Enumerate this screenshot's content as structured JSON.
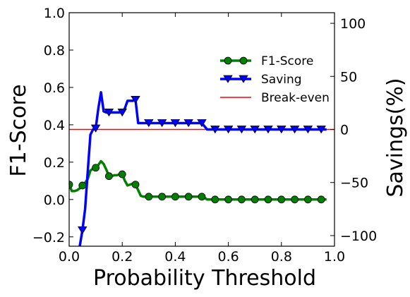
{
  "chart_data": {
    "type": "line",
    "title": "",
    "xlabel": "Probability Threshold",
    "ylabel": "F1-Score",
    "y2label": "Savings(%)",
    "xlim": [
      0.0,
      1.0
    ],
    "ylim": [
      -0.25,
      1.0
    ],
    "y2lim": [
      -110,
      110
    ],
    "xticks": [
      "0.0",
      "0.2",
      "0.4",
      "0.6",
      "0.8",
      "1.0"
    ],
    "yticks": [
      "1.0",
      "0.8",
      "0.6",
      "0.4",
      "0.2",
      "0.0",
      "−0.2"
    ],
    "y2ticks": [
      "100",
      "50",
      "0",
      "−50",
      "−100"
    ],
    "grid": false,
    "legend_position": "upper-right",
    "series": [
      {
        "name": "F1-Score",
        "axis": "left",
        "color": "#007f00",
        "marker": "circle",
        "marker_x": [
          0.0,
          0.05,
          0.1,
          0.15,
          0.2,
          0.25,
          0.3,
          0.35,
          0.4,
          0.45,
          0.5,
          0.55,
          0.6,
          0.65,
          0.7,
          0.75,
          0.8,
          0.85,
          0.9,
          0.95
        ],
        "x": [
          0.0,
          0.01,
          0.02,
          0.03,
          0.04,
          0.05,
          0.06,
          0.07,
          0.08,
          0.09,
          0.1,
          0.11,
          0.12,
          0.13,
          0.14,
          0.15,
          0.16,
          0.17,
          0.18,
          0.19,
          0.2,
          0.21,
          0.22,
          0.23,
          0.24,
          0.25,
          0.26,
          0.27,
          0.28,
          0.29,
          0.3,
          0.35,
          0.4,
          0.45,
          0.5,
          0.51,
          0.52,
          0.55,
          0.6,
          0.65,
          0.7,
          0.75,
          0.8,
          0.85,
          0.9,
          0.95,
          0.97
        ],
        "values": [
          0.08,
          0.045,
          0.045,
          0.05,
          0.06,
          0.075,
          0.09,
          0.11,
          0.155,
          0.165,
          0.17,
          0.185,
          0.205,
          0.19,
          0.16,
          0.125,
          0.125,
          0.13,
          0.13,
          0.135,
          0.135,
          0.1,
          0.075,
          0.08,
          0.085,
          0.08,
          0.05,
          0.02,
          0.015,
          0.015,
          0.015,
          0.015,
          0.015,
          0.015,
          0.015,
          0.01,
          0.0,
          0.0,
          0.0,
          0.0,
          0.0,
          0.0,
          0.0,
          0.0,
          0.0,
          0.0,
          0.0
        ]
      },
      {
        "name": "Saving",
        "axis": "right",
        "color": "#0000ff",
        "marker": "triangle-down",
        "marker_x": [
          0.05,
          0.1,
          0.15,
          0.2,
          0.25,
          0.3,
          0.35,
          0.4,
          0.45,
          0.5,
          0.55,
          0.6,
          0.65,
          0.7,
          0.75,
          0.8,
          0.85,
          0.9,
          0.95
        ],
        "x": [
          0.04,
          0.05,
          0.06,
          0.07,
          0.08,
          0.09,
          0.1,
          0.11,
          0.12,
          0.13,
          0.14,
          0.15,
          0.2,
          0.21,
          0.22,
          0.23,
          0.24,
          0.25,
          0.26,
          0.27,
          0.3,
          0.35,
          0.4,
          0.45,
          0.5,
          0.51,
          0.52,
          0.55,
          0.6,
          0.65,
          0.7,
          0.75,
          0.8,
          0.85,
          0.9,
          0.95,
          0.97
        ],
        "values": [
          -110,
          -95,
          -75,
          -40,
          -5,
          0,
          1,
          20,
          35,
          17,
          16,
          16,
          16,
          20,
          27,
          27,
          27,
          28,
          6,
          6,
          6,
          6,
          6,
          6,
          6,
          3,
          0,
          0,
          0,
          0,
          0,
          0,
          0,
          0,
          0,
          0,
          0
        ]
      },
      {
        "name": "Break-even",
        "axis": "right",
        "color": "#ff0000",
        "marker": "none",
        "x": [
          0.0,
          1.0
        ],
        "values": [
          0,
          0
        ]
      }
    ]
  }
}
